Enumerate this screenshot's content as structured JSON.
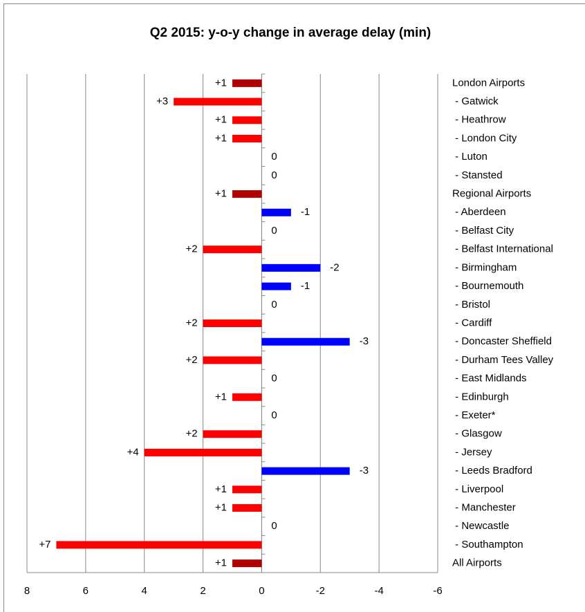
{
  "chart_data": {
    "type": "bar",
    "orientation": "horizontal",
    "title": "Q2 2015: y-o-y change in average delay (min)",
    "categories": [
      "London Airports",
      " - Gatwick",
      " - Heathrow",
      " - London City",
      " - Luton",
      " - Stansted",
      "Regional Airports",
      " - Aberdeen",
      " - Belfast City",
      " - Belfast International",
      " - Birmingham",
      " - Bournemouth",
      " - Bristol",
      " - Cardiff",
      " - Doncaster Sheffield",
      " - Durham Tees Valley",
      " - East Midlands",
      " - Edinburgh",
      " - Exeter*",
      " - Glasgow",
      " - Jersey",
      " - Leeds Bradford",
      " - Liverpool",
      " - Manchester",
      " - Newcastle",
      " - Southampton",
      "All Airports"
    ],
    "values": [
      1,
      3,
      1,
      1,
      0,
      0,
      1,
      -1,
      0,
      2,
      -2,
      -1,
      0,
      2,
      -3,
      2,
      0,
      1,
      0,
      2,
      4,
      -3,
      1,
      1,
      0,
      7,
      1
    ],
    "value_labels": [
      "+1",
      "+3",
      "+1",
      "+1",
      "0",
      "0",
      "+1",
      "-1",
      "0",
      "+2",
      "-2",
      "-1",
      "0",
      "+2",
      "-3",
      "+2",
      "0",
      "+1",
      "0",
      "+2",
      "+4",
      "-3",
      "+1",
      "+1",
      "0",
      "+7",
      "+1"
    ],
    "colors": [
      "#b00000",
      "#ff0000",
      "#ff0000",
      "#ff0000",
      "#ff0000",
      "#ff0000",
      "#b00000",
      "#0000ff",
      "#ff0000",
      "#ff0000",
      "#0000ff",
      "#0000ff",
      "#ff0000",
      "#ff0000",
      "#0000ff",
      "#ff0000",
      "#ff0000",
      "#ff0000",
      "#ff0000",
      "#ff0000",
      "#ff0000",
      "#0000ff",
      "#ff0000",
      "#ff0000",
      "#ff0000",
      "#ff0000",
      "#b00000"
    ],
    "xlim": [
      8,
      -6
    ],
    "xticks": [
      8,
      6,
      4,
      2,
      0,
      -2,
      -4,
      -6
    ],
    "grid": true
  }
}
